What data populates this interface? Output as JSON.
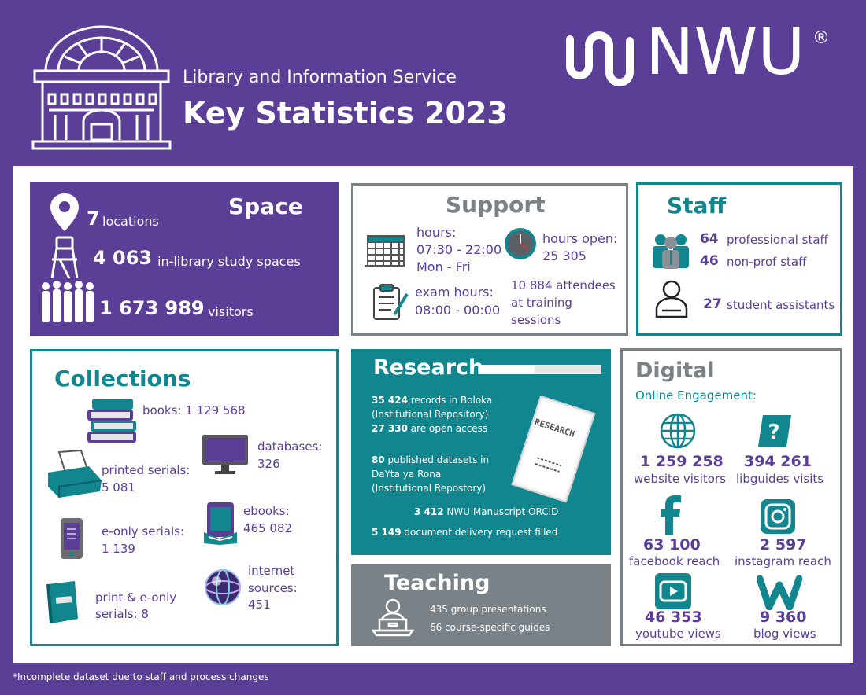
{
  "header": {
    "subtitle": "Library and Information Service",
    "title": "Key Statistics 2023",
    "logo_text": "NWU",
    "registered": "®"
  },
  "space": {
    "heading": "Space",
    "locations_num": "7",
    "locations_label": "locations",
    "study_num": "4 063",
    "study_label": "in-library study spaces",
    "visitors_num": "1 673 989",
    "visitors_label": "visitors"
  },
  "support": {
    "heading": "Support",
    "hours_line1": "hours:",
    "hours_line2": "07:30 - 22:00",
    "hours_line3": "Mon - Fri",
    "open_line1": "hours open:",
    "open_line2": "25 305",
    "exam_line1": "exam hours:",
    "exam_line2": "08:00 - 00:00",
    "training_line1": "10 884 attendees",
    "training_line2": "at training",
    "training_line3": "sessions"
  },
  "staff": {
    "heading": "Staff",
    "prof_num": "64",
    "prof_label": "professional staff",
    "nonprof_num": "46",
    "nonprof_label": "non-prof staff",
    "student_num": "27",
    "student_label": "student assistants"
  },
  "collections": {
    "heading": "Collections",
    "books": "books: 1 129 568",
    "printed_line1": "printed serials:",
    "printed_line2": "5 081",
    "databases_line1": "databases:",
    "databases_line2": "326",
    "ebooks_line1": "ebooks:",
    "ebooks_line2": "465 082",
    "eonly_line1": "e-only serials:",
    "eonly_line2": "1 139",
    "internet_line1": "internet",
    "internet_line2": "sources:",
    "internet_line3": "451",
    "printe_line1": "print &  e-only",
    "printe_line2": "serials: 8"
  },
  "research": {
    "heading": "Research",
    "doc_label": "RESEARCH",
    "r1_num": "35 424",
    "r1_text": "records in Boloka",
    "r1_line2": "(Institutional Repository)",
    "r2_num": "27 330",
    "r2_text": "are open access",
    "r3_num": "80",
    "r3_text": "published datasets in",
    "r3_line2": "DaYta ya Rona",
    "r3_line3": "(Institutional Repostory)",
    "r4_num": "3 412",
    "r4_text": "NWU Manuscript ORCID",
    "r5_num": "5 149",
    "r5_text": "document delivery request filled"
  },
  "teaching": {
    "heading": "Teaching",
    "line1": "435 group presentations",
    "line2": "66 course-specific guides"
  },
  "digital": {
    "heading": "Digital",
    "subheading": "Online Engagement:",
    "items": [
      {
        "num": "1 259 258",
        "label": "website visitors"
      },
      {
        "num": "394 261",
        "label": "libguides visits"
      },
      {
        "num": "63 100",
        "label": "facebook reach"
      },
      {
        "num": "2 597",
        "label": "instagram reach"
      },
      {
        "num": "46 353",
        "label": "youtube views"
      },
      {
        "num": "9 360",
        "label": "blog views"
      }
    ]
  },
  "footnote": "*Incomplete dataset due to staff and process changes",
  "colors": {
    "purple": "#5b3f97",
    "teal": "#11868f",
    "gray": "#7a8288"
  }
}
